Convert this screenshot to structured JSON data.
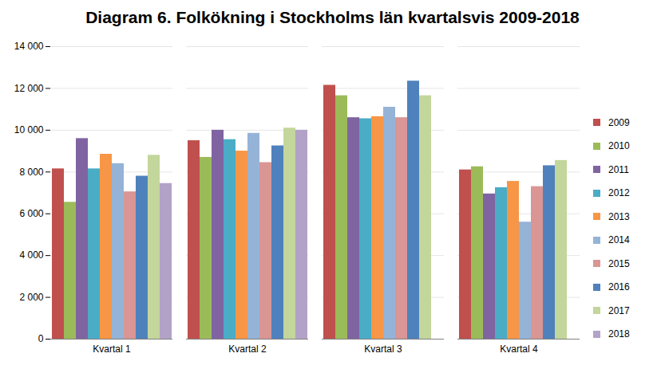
{
  "chart_data": {
    "type": "bar",
    "title": "Diagram 6. Folkökning i Stockholms län kvartalsvis 2009-2018",
    "categories": [
      "Kvartal 1",
      "Kvartal 2",
      "Kvartal 3",
      "Kvartal 4"
    ],
    "series": [
      {
        "name": "2009",
        "color": "#c0504d",
        "values": [
          8150,
          9500,
          12150,
          8100
        ]
      },
      {
        "name": "2010",
        "color": "#9bbb59",
        "values": [
          6550,
          8700,
          11650,
          8250
        ]
      },
      {
        "name": "2011",
        "color": "#8064a2",
        "values": [
          9600,
          10000,
          10600,
          6950
        ]
      },
      {
        "name": "2012",
        "color": "#4bacc6",
        "values": [
          8150,
          9550,
          10550,
          7250
        ]
      },
      {
        "name": "2013",
        "color": "#f79646",
        "values": [
          8850,
          9000,
          10650,
          7550
        ]
      },
      {
        "name": "2014",
        "color": "#95b3d7",
        "values": [
          8400,
          9850,
          11100,
          5600
        ]
      },
      {
        "name": "2015",
        "color": "#d99694",
        "values": [
          7050,
          8450,
          10600,
          7300
        ]
      },
      {
        "name": "2016",
        "color": "#4f81bd",
        "values": [
          7800,
          9250,
          12350,
          8300
        ]
      },
      {
        "name": "2017",
        "color": "#c3d69b",
        "values": [
          8800,
          10100,
          11650,
          8550
        ]
      },
      {
        "name": "2018",
        "color": "#b3a2c7",
        "values": [
          7450,
          10000,
          null,
          null
        ]
      }
    ],
    "ylim": [
      0,
      14000
    ],
    "yticks": [
      0,
      {
        "value": 2000,
        "label": "2 000"
      },
      {
        "value": 4000,
        "label": "4 000"
      },
      {
        "value": 6000,
        "label": "6 000"
      },
      {
        "value": 8000,
        "label": "8 000"
      },
      {
        "value": 10000,
        "label": "10 000"
      },
      {
        "value": 12000,
        "label": "12 000"
      },
      {
        "value": 14000,
        "label": "14 000"
      }
    ],
    "grid": true,
    "legend": "right"
  }
}
